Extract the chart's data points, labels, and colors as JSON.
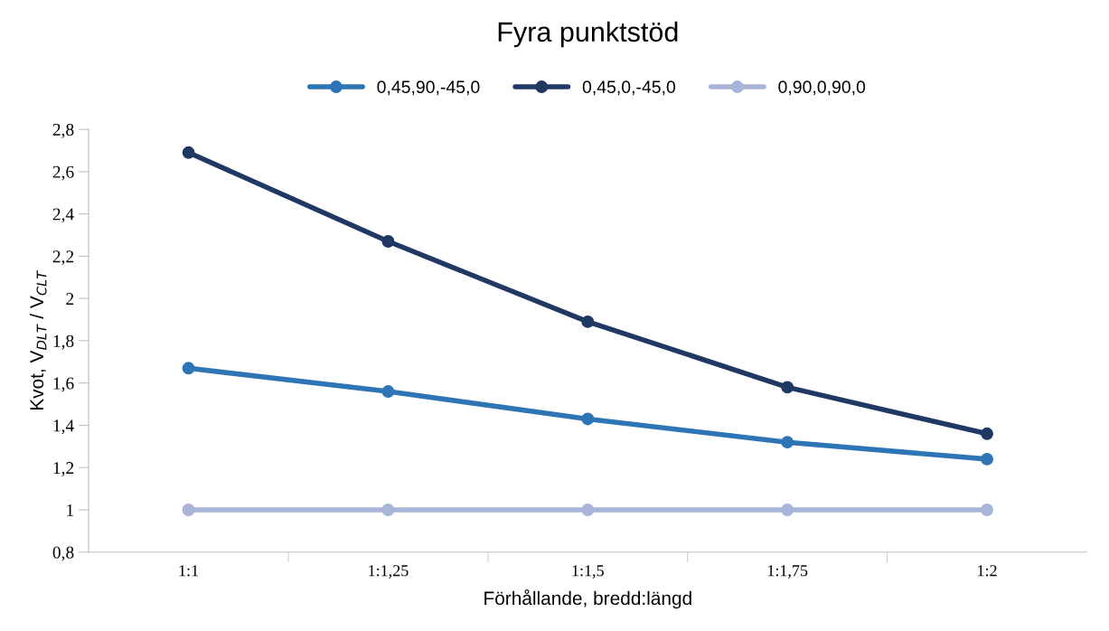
{
  "chart_data": {
    "type": "line",
    "title": "Fyra punktstöd",
    "xlabel": "Förhållande, bredd:längd",
    "ylabel": "Kvot, V$_{DLT}$ / V$_{CLT}$",
    "categories": [
      "1:1",
      "1:1,25",
      "1:1,5",
      "1:1,75",
      "1:2"
    ],
    "series": [
      {
        "name": "0,45,90,-45,0",
        "color": "#2e75b6",
        "values": [
          1.67,
          1.56,
          1.43,
          1.32,
          1.24
        ]
      },
      {
        "name": "0,45,0,-45,0",
        "color": "#203864",
        "values": [
          2.69,
          2.27,
          1.89,
          1.58,
          1.36
        ]
      },
      {
        "name": "0,90,0,90,0",
        "color": "#a9b4d9",
        "values": [
          1,
          1,
          1,
          1,
          1
        ]
      }
    ],
    "ylim": [
      0.8,
      2.8
    ],
    "yticks": [
      {
        "value": 0.8,
        "label": "0,8"
      },
      1,
      {
        "value": 1.2,
        "label": "1,2"
      },
      {
        "value": 1.4,
        "label": "1,4"
      },
      {
        "value": 1.6,
        "label": "1,6"
      },
      {
        "value": 1.8,
        "label": "1,8"
      },
      2,
      {
        "value": 2.2,
        "label": "2,2"
      },
      {
        "value": 2.4,
        "label": "2,4"
      },
      {
        "value": 2.6,
        "label": "2,6"
      },
      {
        "value": 2.8,
        "label": "2,8"
      }
    ],
    "grid": false,
    "legend": "top",
    "marker": "circle",
    "line_style": "solid"
  }
}
